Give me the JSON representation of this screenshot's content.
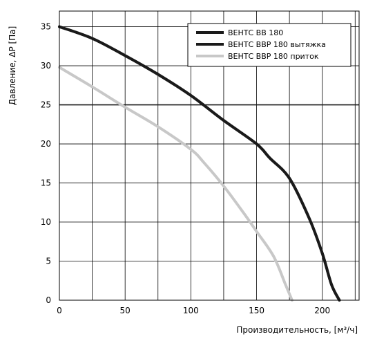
{
  "chart_data": {
    "type": "line",
    "title": "",
    "xlabel": "Производительность, [м³/ч]",
    "ylabel": "Давление, ΔP [Па]",
    "xlim": [
      0,
      228
    ],
    "ylim": [
      0,
      37
    ],
    "xticks": [
      0,
      50,
      100,
      150,
      200
    ],
    "yticks": [
      0,
      5,
      10,
      15,
      20,
      25,
      30,
      35
    ],
    "grid": true,
    "legend_position": "top-right",
    "reference_line": {
      "y": 25,
      "color": "#1a1a1a"
    },
    "series": [
      {
        "name": "ВЕНТС ВВ 180",
        "color": "#1a1a1a",
        "points": [
          [
            0,
            35
          ],
          [
            25,
            33.5
          ],
          [
            50,
            31.3
          ],
          [
            75,
            28.9
          ],
          [
            100,
            26.2
          ],
          [
            125,
            23
          ],
          [
            150,
            20
          ],
          [
            160,
            18.2
          ],
          [
            175,
            15.6
          ],
          [
            190,
            10.5
          ],
          [
            200,
            6
          ],
          [
            207,
            2
          ],
          [
            213,
            0
          ]
        ]
      },
      {
        "name": "ВЕНТС ВВР 180 вытяжка",
        "color": "#1a1a1a",
        "points": [
          [
            0,
            35
          ],
          [
            25,
            33.5
          ],
          [
            50,
            31.3
          ],
          [
            75,
            28.9
          ],
          [
            100,
            26.2
          ],
          [
            125,
            23
          ],
          [
            150,
            20
          ],
          [
            160,
            18.2
          ],
          [
            175,
            15.6
          ],
          [
            190,
            10.5
          ],
          [
            200,
            6
          ],
          [
            207,
            2
          ],
          [
            213,
            0
          ]
        ]
      },
      {
        "name": "ВЕНТС ВВР 180 приток",
        "color": "#c8c8c8",
        "points": [
          [
            0,
            29.8
          ],
          [
            25,
            27.3
          ],
          [
            50,
            24.7
          ],
          [
            75,
            22.2
          ],
          [
            100,
            19.3
          ],
          [
            110,
            17.6
          ],
          [
            125,
            14.6
          ],
          [
            140,
            11.2
          ],
          [
            150,
            8.8
          ],
          [
            163,
            5.6
          ],
          [
            172,
            2
          ],
          [
            177,
            0
          ]
        ]
      }
    ]
  }
}
